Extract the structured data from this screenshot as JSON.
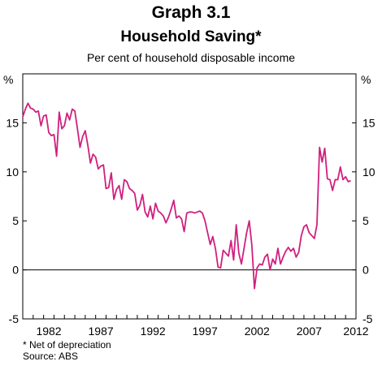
{
  "chart_data": {
    "type": "line",
    "title": "Graph 3.1",
    "subtitle": "Household Saving*",
    "ylabel": "Per cent of household disposable income",
    "unit_left": "%",
    "unit_right": "%",
    "xlim": [
      1980.0,
      2012.0
    ],
    "ylim": [
      -5,
      20
    ],
    "yticks": [
      -5,
      0,
      5,
      10,
      15
    ],
    "xtick_labels": [
      "1982",
      "1987",
      "1992",
      "1997",
      "2002",
      "2007",
      "2012"
    ],
    "grid": false,
    "series": [
      {
        "name": "",
        "color": "#d0207e",
        "x": [
          1980.0,
          1980.25,
          1980.5,
          1980.75,
          1981.0,
          1981.25,
          1981.5,
          1981.75,
          1982.0,
          1982.25,
          1982.5,
          1982.75,
          1983.0,
          1983.25,
          1983.5,
          1983.75,
          1984.0,
          1984.25,
          1984.5,
          1984.75,
          1985.0,
          1985.25,
          1985.5,
          1985.75,
          1986.0,
          1986.25,
          1986.5,
          1986.75,
          1987.0,
          1987.25,
          1987.5,
          1987.75,
          1988.0,
          1988.25,
          1988.5,
          1988.75,
          1989.0,
          1989.25,
          1989.5,
          1989.75,
          1990.0,
          1990.25,
          1990.5,
          1990.75,
          1991.0,
          1991.25,
          1991.5,
          1991.75,
          1992.0,
          1992.25,
          1992.5,
          1992.75,
          1993.0,
          1993.25,
          1993.5,
          1993.75,
          1994.0,
          1994.25,
          1994.5,
          1994.75,
          1995.0,
          1995.25,
          1995.5,
          1995.75,
          1996.0,
          1996.25,
          1996.5,
          1996.75,
          1997.0,
          1997.25,
          1997.5,
          1997.75,
          1998.0,
          1998.25,
          1998.5,
          1998.75,
          1999.0,
          1999.25,
          1999.5,
          1999.75,
          2000.0,
          2000.25,
          2000.5,
          2000.75,
          2001.0,
          2001.25,
          2001.5,
          2001.75,
          2002.0,
          2002.25,
          2002.5,
          2002.75,
          2003.0,
          2003.25,
          2003.5,
          2003.75,
          2004.0,
          2004.25,
          2004.5,
          2004.75,
          2005.0,
          2005.25,
          2005.5,
          2005.75,
          2006.0,
          2006.25,
          2006.5,
          2006.75,
          2007.0,
          2007.25,
          2007.5,
          2007.75,
          2008.0,
          2008.25,
          2008.5,
          2008.75,
          2009.0,
          2009.25,
          2009.5,
          2009.75,
          2010.0,
          2010.25,
          2010.5,
          2010.75,
          2011.0,
          2011.25,
          2011.5
        ],
        "y": [
          15.6,
          16.4,
          17.0,
          16.5,
          16.4,
          16.1,
          16.2,
          14.7,
          15.7,
          15.8,
          14.0,
          13.7,
          13.8,
          11.6,
          16.1,
          14.4,
          14.7,
          16.0,
          15.3,
          16.4,
          16.2,
          14.4,
          12.5,
          13.6,
          14.2,
          12.7,
          10.9,
          11.8,
          11.5,
          10.3,
          10.6,
          10.7,
          8.3,
          8.4,
          9.9,
          7.2,
          8.2,
          8.6,
          7.2,
          9.2,
          9.0,
          8.3,
          8.1,
          7.8,
          6.1,
          6.6,
          7.7,
          5.9,
          5.4,
          6.5,
          5.2,
          6.8,
          6.0,
          5.8,
          5.5,
          4.8,
          5.4,
          6.2,
          7.1,
          5.3,
          5.5,
          5.2,
          3.9,
          5.8,
          5.9,
          5.9,
          5.8,
          5.9,
          6.0,
          5.8,
          5.0,
          3.8,
          2.6,
          3.4,
          2.2,
          0.3,
          0.2,
          2.0,
          1.7,
          1.4,
          3.0,
          1.0,
          4.6,
          1.7,
          0.6,
          2.2,
          3.8,
          5.0,
          2.5,
          -1.9,
          0.2,
          0.6,
          0.5,
          1.3,
          1.6,
          0.0,
          1.1,
          0.6,
          2.2,
          0.6,
          1.3,
          1.9,
          2.3,
          1.9,
          2.2,
          1.3,
          1.8,
          3.5,
          4.4,
          4.6,
          3.8,
          3.5,
          3.2,
          4.6,
          12.5,
          11.0,
          12.4,
          9.3,
          9.2,
          8.1,
          9.2,
          9.2,
          10.5,
          9.2,
          9.5,
          9.0,
          9.1
        ]
      }
    ]
  },
  "footnote": "*    Net of depreciation",
  "source": "Source: ABS"
}
